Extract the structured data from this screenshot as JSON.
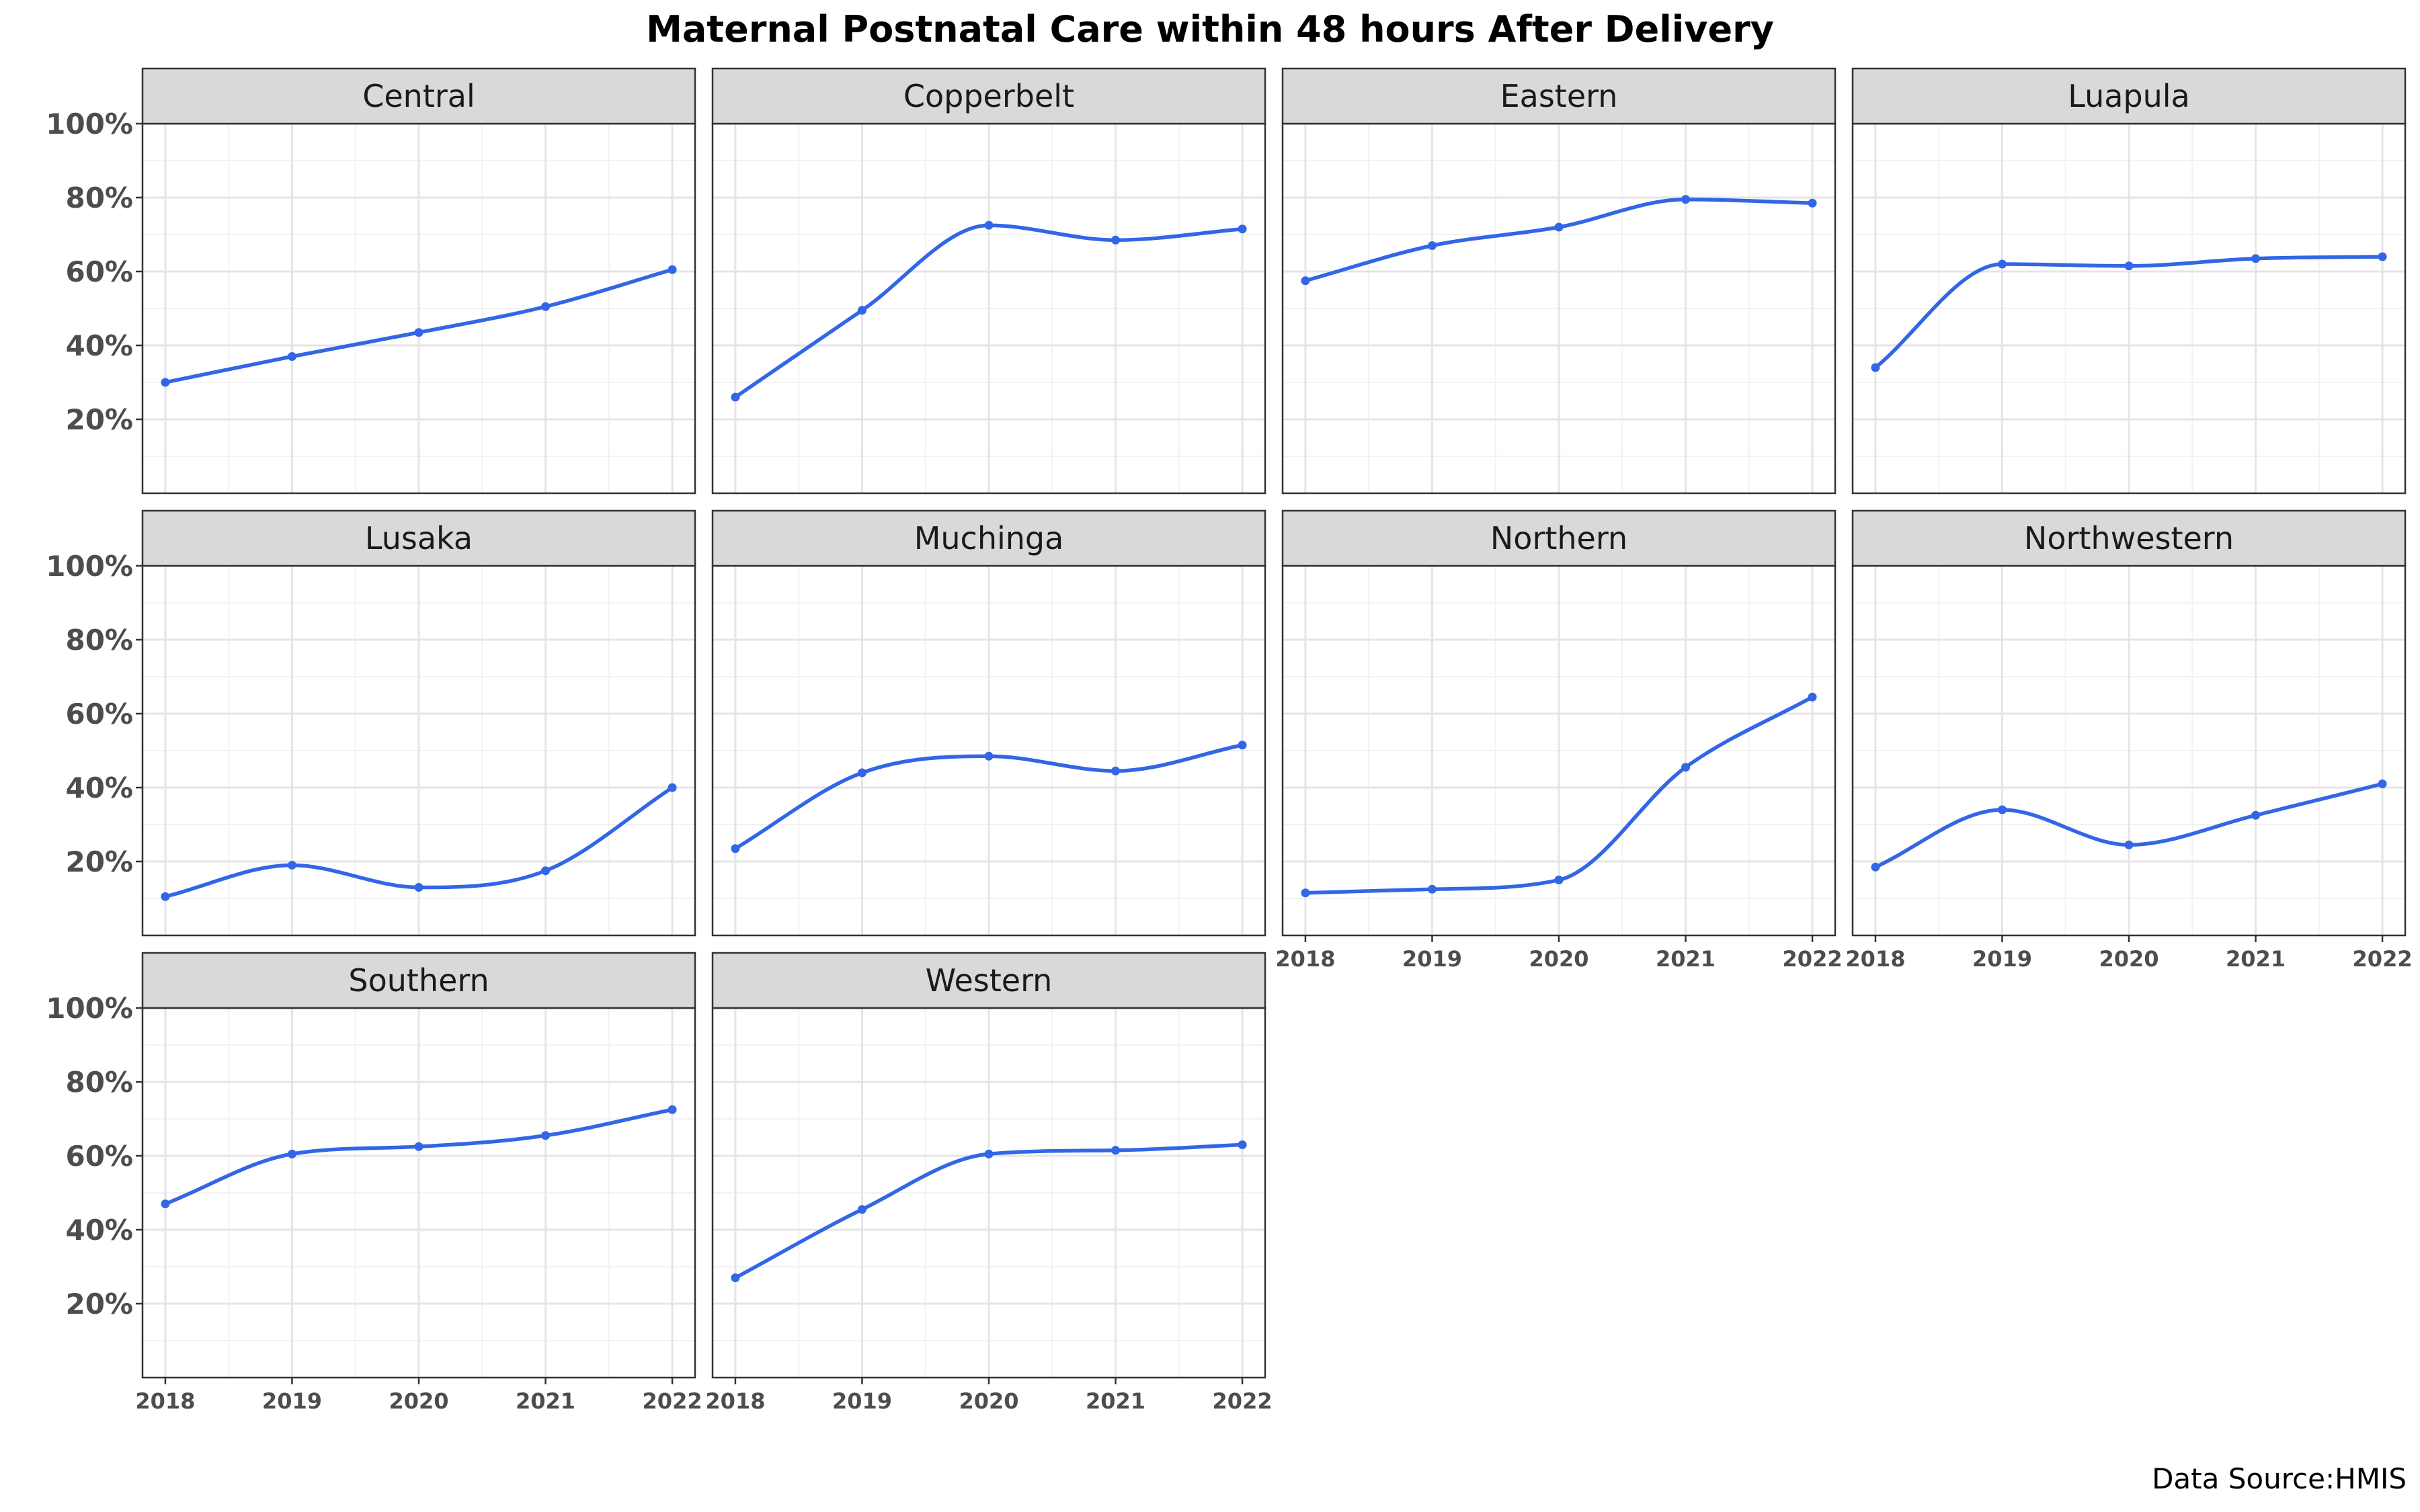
{
  "title": "Maternal Postnatal Care within 48 hours After Delivery",
  "caption": "Data Source:HMIS",
  "colors": {
    "line": "#3366e6",
    "point": "#3366e6",
    "strip_bg": "#d9d9d9",
    "panel_border": "#333333",
    "grid_major": "#e5e5e5",
    "grid_minor": "#f2f2f2",
    "tick_text": "#4d4d4d"
  },
  "chart_data": {
    "type": "line",
    "title": "Maternal Postnatal Care within 48 hours After Delivery",
    "facet_layout": "4 columns x 3 rows",
    "x": [
      2018,
      2019,
      2020,
      2021,
      2022
    ],
    "x_ticks": [
      "2018",
      "2019",
      "2020",
      "2021",
      "2022"
    ],
    "y_ticks": [
      "20%",
      "40%",
      "60%",
      "80%",
      "100%"
    ],
    "y_tick_values": [
      20,
      40,
      60,
      80,
      100
    ],
    "ylim": [
      0,
      100
    ],
    "grid": true,
    "panels": [
      {
        "name": "Central",
        "values": [
          30,
          37,
          43.5,
          50.5,
          60.5
        ]
      },
      {
        "name": "Copperbelt",
        "values": [
          26,
          49.5,
          72.5,
          68.5,
          71.5
        ]
      },
      {
        "name": "Eastern",
        "values": [
          57.5,
          67,
          72,
          79.5,
          78.5
        ]
      },
      {
        "name": "Luapula",
        "values": [
          34,
          62,
          61.5,
          63.5,
          64
        ]
      },
      {
        "name": "Lusaka",
        "values": [
          10.5,
          19,
          13,
          17.5,
          40
        ]
      },
      {
        "name": "Muchinga",
        "values": [
          23.5,
          44,
          48.5,
          44.5,
          51.5
        ]
      },
      {
        "name": "Northern",
        "values": [
          11.5,
          12.5,
          15,
          45.5,
          64.5
        ]
      },
      {
        "name": "Northwestern",
        "values": [
          18.5,
          34,
          24.5,
          32.5,
          41
        ]
      },
      {
        "name": "Southern",
        "values": [
          47,
          60.5,
          62.5,
          65.5,
          72.5
        ]
      },
      {
        "name": "Western",
        "values": [
          27,
          45.5,
          60.5,
          61.5,
          63
        ]
      }
    ]
  }
}
